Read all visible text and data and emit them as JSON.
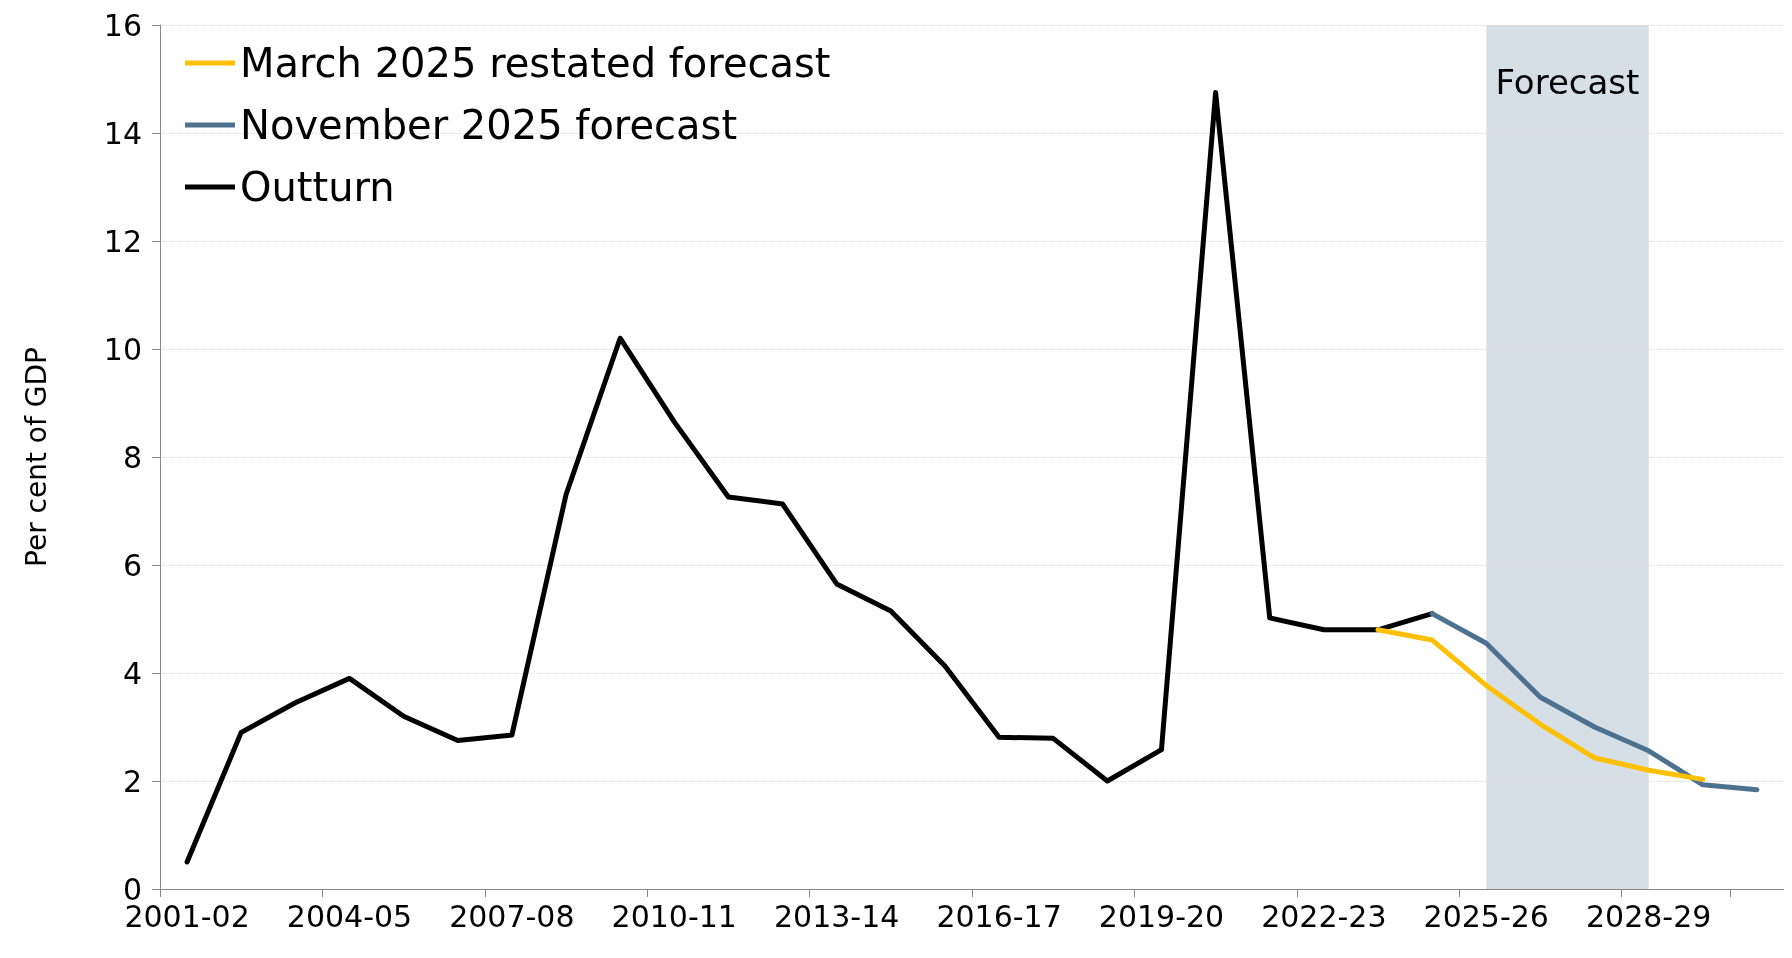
{
  "chart_data": {
    "type": "line",
    "ylabel": "Per cent of GDP",
    "categories": [
      "2001-02",
      null,
      null,
      "2004-05",
      null,
      null,
      "2007-08",
      null,
      null,
      "2010-11",
      null,
      null,
      "2013-14",
      null,
      null,
      "2016-17",
      null,
      null,
      "2019-20",
      null,
      null,
      "2022-23",
      null,
      null,
      "2025-26",
      null,
      null,
      "2028-29",
      null,
      null
    ],
    "series": [
      {
        "name": "March 2025 restated forecast",
        "color": "#ffc000",
        "values": [
          null,
          null,
          null,
          null,
          null,
          null,
          null,
          null,
          null,
          null,
          null,
          null,
          null,
          null,
          null,
          null,
          null,
          null,
          null,
          null,
          null,
          null,
          4.8,
          4.61,
          3.77,
          3.05,
          2.43,
          2.2,
          2.03,
          null
        ]
      },
      {
        "name": "November 2025 forecast",
        "color": "#4d7291",
        "values": [
          null,
          null,
          null,
          null,
          null,
          null,
          null,
          null,
          null,
          null,
          null,
          null,
          null,
          null,
          null,
          null,
          null,
          null,
          null,
          null,
          null,
          null,
          null,
          5.1,
          4.55,
          3.55,
          3.0,
          2.56,
          1.93,
          1.84
        ]
      },
      {
        "name": "Outturn",
        "color": "#000000",
        "values": [
          0.5,
          2.9,
          3.45,
          3.9,
          3.2,
          2.75,
          2.85,
          7.3,
          10.2,
          8.65,
          7.26,
          7.13,
          5.65,
          5.15,
          4.13,
          2.81,
          2.79,
          2.0,
          2.58,
          14.75,
          5.02,
          4.8,
          4.8,
          5.1,
          null,
          null,
          null,
          null,
          null,
          null
        ]
      }
    ],
    "bands": [
      {
        "axis": "x",
        "from": "2025-26",
        "to": "2028-29",
        "label": "Forecast",
        "color": "#d6dee6"
      }
    ],
    "ylim": [
      0,
      16
    ],
    "yticks": [
      0,
      2,
      4,
      6,
      8,
      10,
      12,
      14,
      16
    ],
    "grid": "y",
    "legend": "top left",
    "marker": "none",
    "line_style": "solid"
  }
}
